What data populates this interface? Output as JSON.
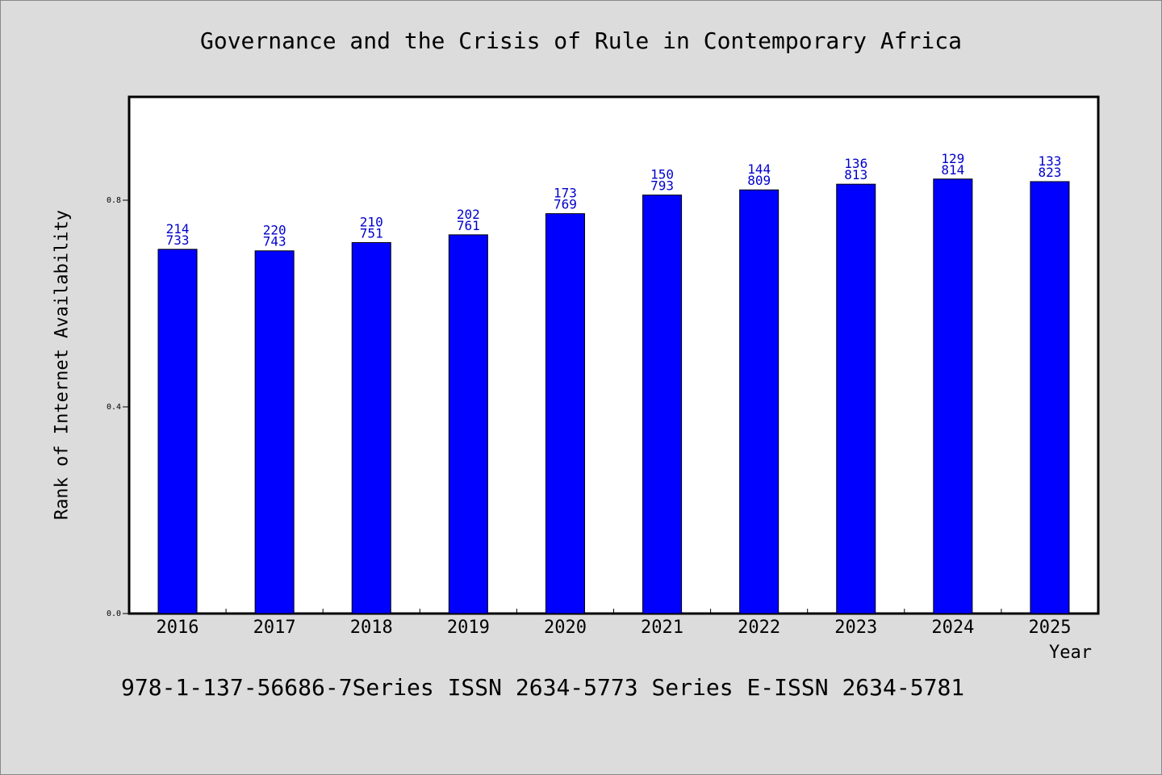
{
  "chart_data": {
    "type": "bar",
    "title": "Governance and the Crisis of Rule in Contemporary Africa",
    "xlabel": "Year",
    "ylabel": "Rank of Internet Availability",
    "categories": [
      "2016",
      "2017",
      "2018",
      "2019",
      "2020",
      "2021",
      "2022",
      "2023",
      "2024",
      "2025"
    ],
    "values": [
      0.705,
      0.702,
      0.718,
      0.733,
      0.774,
      0.81,
      0.82,
      0.831,
      0.841,
      0.836
    ],
    "bar_labels": [
      [
        "214",
        "733"
      ],
      [
        "220",
        "743"
      ],
      [
        "210",
        "751"
      ],
      [
        "202",
        "761"
      ],
      [
        "173",
        "769"
      ],
      [
        "150",
        "793"
      ],
      [
        "144",
        "809"
      ],
      [
        "136",
        "813"
      ],
      [
        "129",
        "814"
      ],
      [
        "133",
        "823"
      ]
    ],
    "ylim": [
      0,
      1.0
    ],
    "yticks": [
      "0.0",
      "0.4",
      "0.8"
    ],
    "ytick_values": [
      0.0,
      0.4,
      0.8
    ],
    "grid": false,
    "colors": {
      "bar": "#0000ff",
      "label": "#0000cc",
      "plot_bg": "#ffffff",
      "page_bg": "#dcdcdc"
    }
  },
  "footer": {
    "series_info": "978-1-137-56686-7Series ISSN 2634-5773 Series E-ISSN 2634-5781"
  }
}
